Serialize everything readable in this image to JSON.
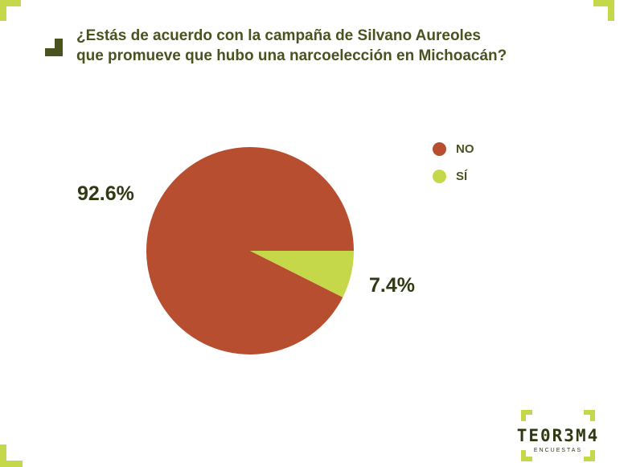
{
  "title_lines": [
    "¿Estás de acuerdo con la campaña de Silvano Aureoles",
    "que promueve que hubo una narcoelección en Michoacán?"
  ],
  "colors": {
    "accent": "#c5d84a",
    "dark_green": "#4a5320",
    "no": "#b84e30",
    "si": "#c5d84a"
  },
  "chart_data": {
    "type": "pie",
    "categories": [
      "NO",
      "SÍ"
    ],
    "values": [
      92.6,
      7.4
    ],
    "value_labels": [
      "92.6%",
      "7.4%"
    ],
    "colors": [
      "#b84e30",
      "#c5d84a"
    ],
    "legend_position": "right",
    "start": "3 o'clock, counterclockwise"
  },
  "logo": {
    "name": "TE0R3M4",
    "subtitle": "ENCUESTAS"
  }
}
